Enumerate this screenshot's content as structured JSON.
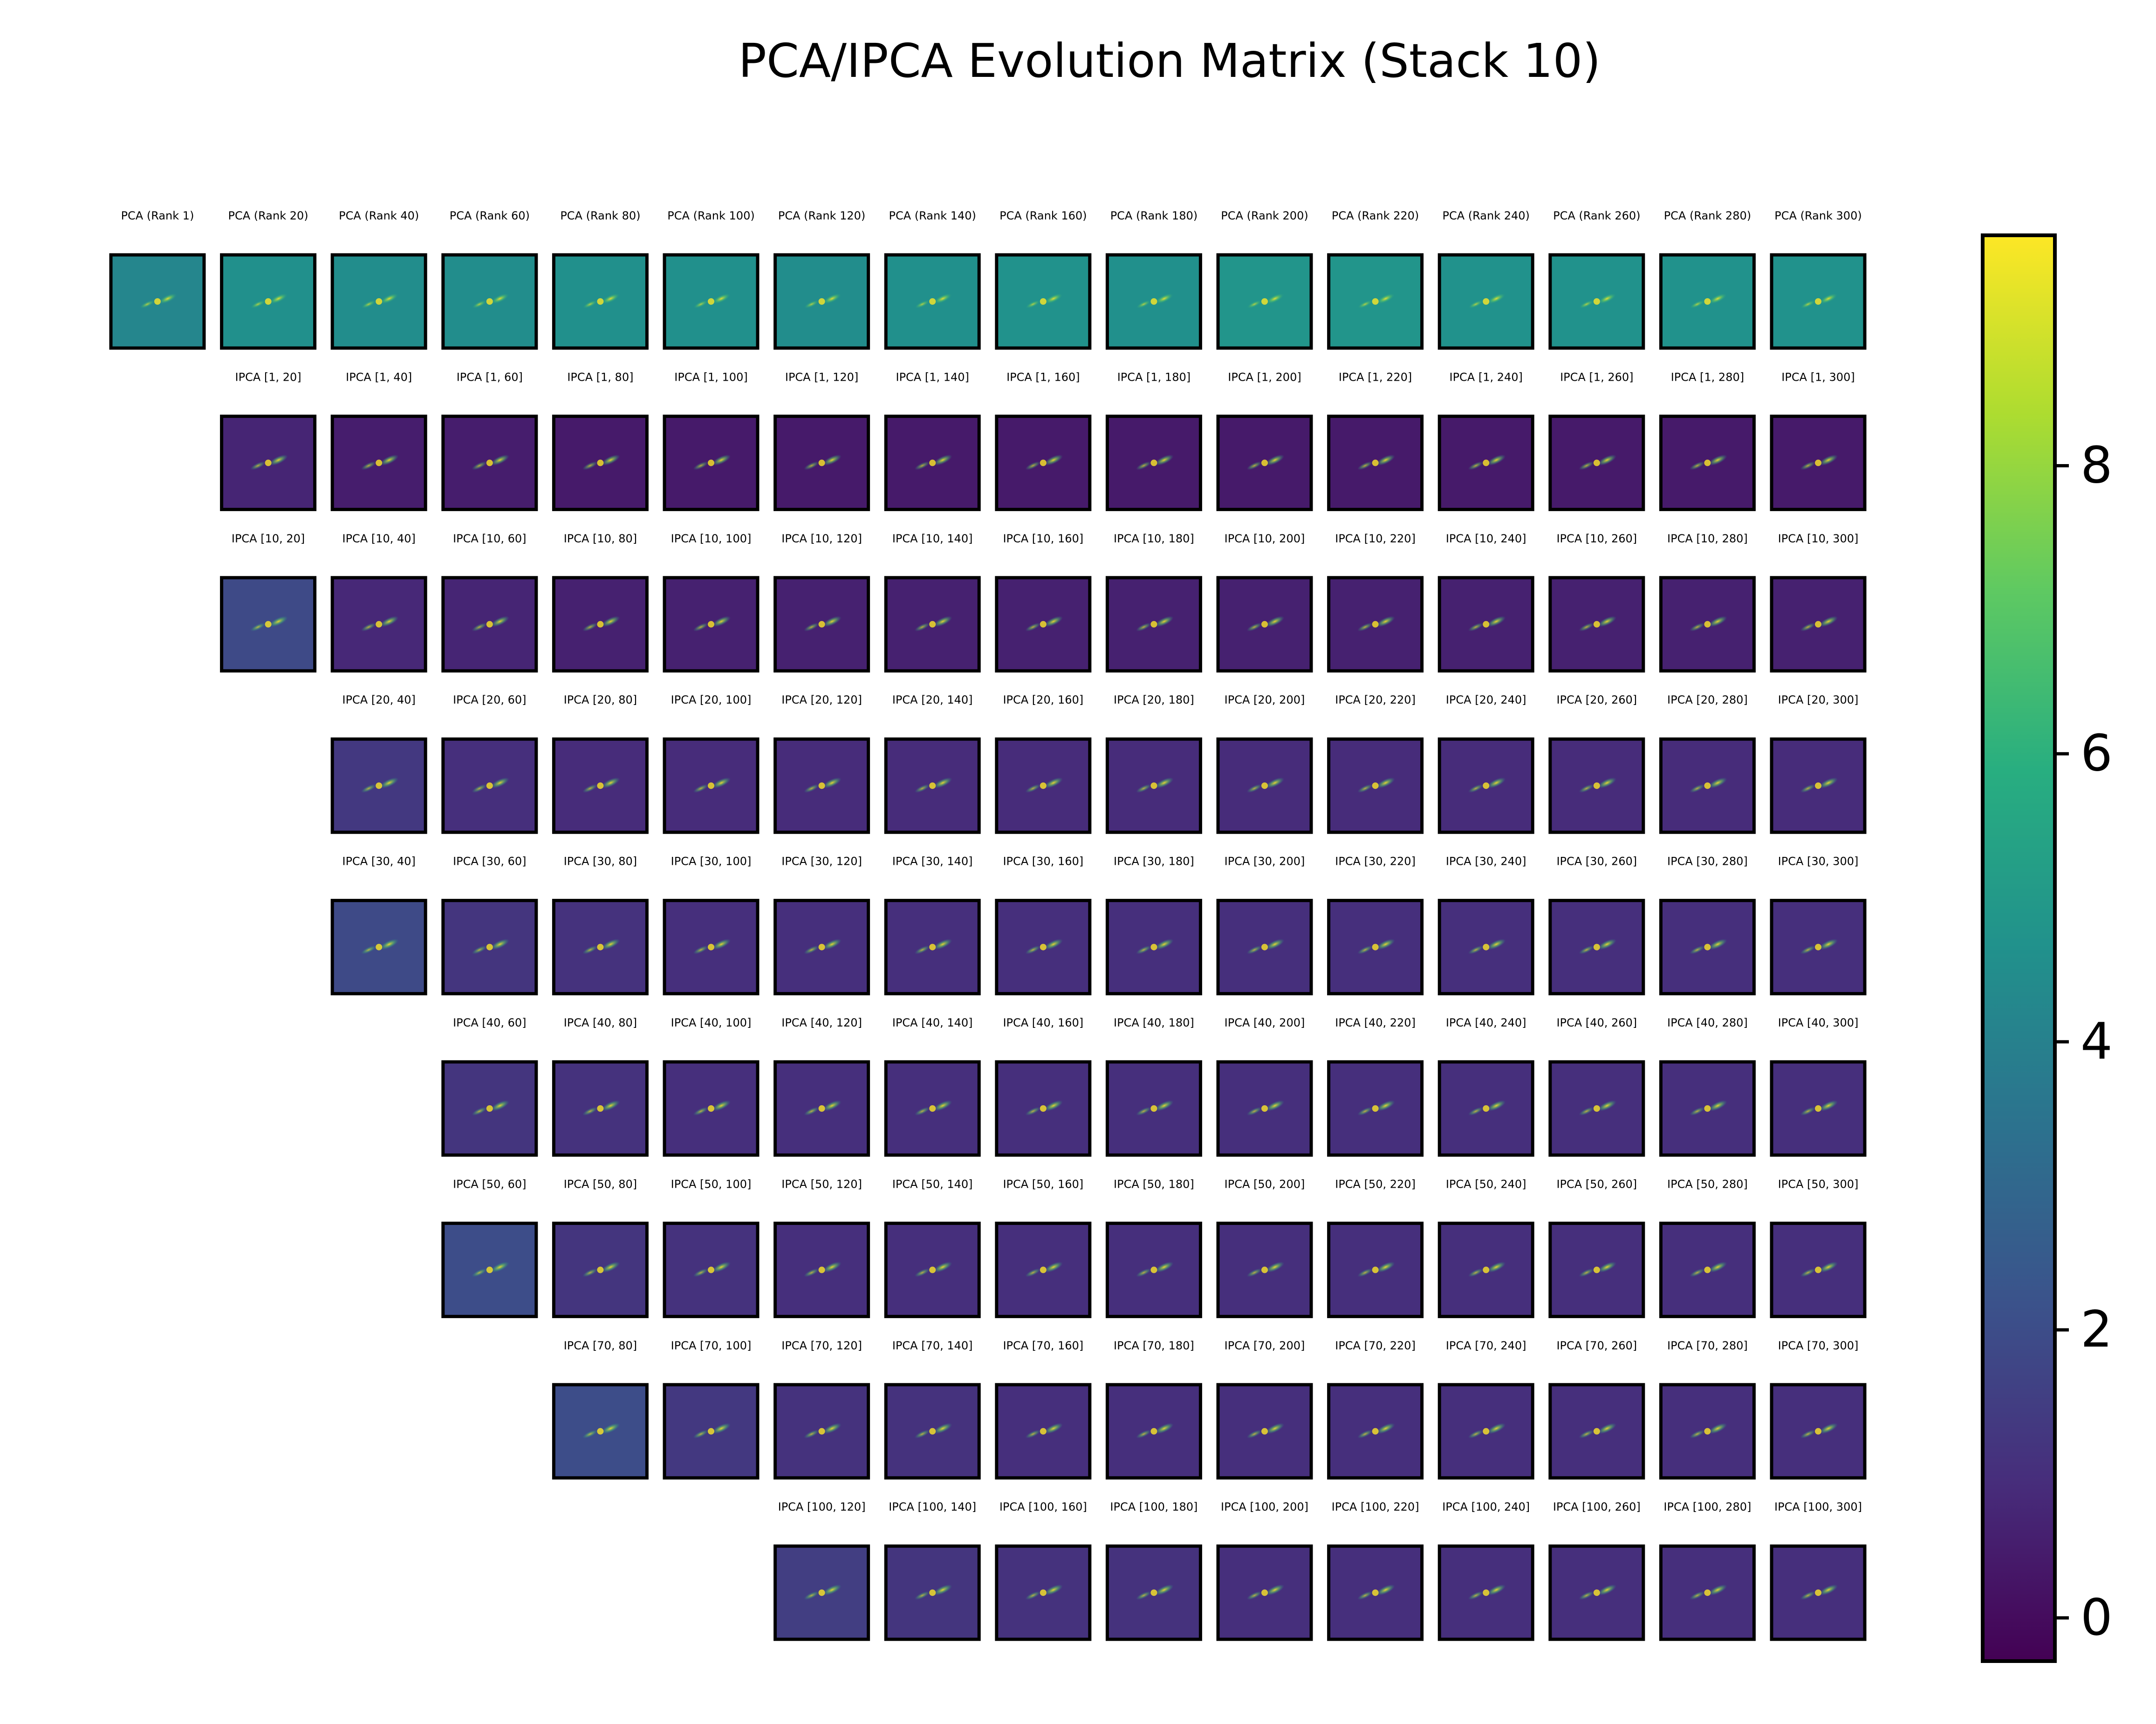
{
  "chart_data": {
    "type": "heatmap",
    "title": "PCA/IPCA Evolution Matrix (Stack 10)",
    "colormap": "viridis",
    "colorbar": {
      "ticks": [
        0,
        2,
        4,
        6,
        8
      ],
      "tick_labels": [
        "0",
        "2",
        "4",
        "6",
        "8"
      ],
      "range": [
        -0.3,
        9.6
      ]
    },
    "columns": [
      20,
      40,
      60,
      80,
      100,
      120,
      140,
      160,
      180,
      200,
      220,
      240,
      260,
      280,
      300
    ],
    "rows": [
      {
        "label": "PCA",
        "panels": [
          {
            "label": "PCA (Rank 1)",
            "level": 4.2
          },
          {
            "label": "PCA (Rank 20)",
            "level": 4.6
          },
          {
            "label": "PCA (Rank 40)",
            "level": 4.5
          },
          {
            "label": "PCA (Rank 60)",
            "level": 4.5
          },
          {
            "label": "PCA (Rank 80)",
            "level": 4.6
          },
          {
            "label": "PCA (Rank 100)",
            "level": 4.6
          },
          {
            "label": "PCA (Rank 120)",
            "level": 4.5
          },
          {
            "label": "PCA (Rank 140)",
            "level": 4.6
          },
          {
            "label": "PCA (Rank 160)",
            "level": 4.7
          },
          {
            "label": "PCA (Rank 180)",
            "level": 4.6
          },
          {
            "label": "PCA (Rank 200)",
            "level": 4.8
          },
          {
            "label": "PCA (Rank 220)",
            "level": 4.8
          },
          {
            "label": "PCA (Rank 240)",
            "level": 4.7
          },
          {
            "label": "PCA (Rank 260)",
            "level": 4.7
          },
          {
            "label": "PCA (Rank 280)",
            "level": 4.7
          },
          {
            "label": "PCA (Rank 300)",
            "level": 4.7
          }
        ]
      },
      {
        "label": "IPCA [1, *]",
        "panels": [
          {
            "label": "IPCA [1, 20]",
            "level": 0.7
          },
          {
            "label": "IPCA [1, 40]",
            "level": 0.5
          },
          {
            "label": "IPCA [1, 60]",
            "level": 0.5
          },
          {
            "label": "IPCA [1, 80]",
            "level": 0.4
          },
          {
            "label": "IPCA [1, 100]",
            "level": 0.4
          },
          {
            "label": "IPCA [1, 120]",
            "level": 0.4
          },
          {
            "label": "IPCA [1, 140]",
            "level": 0.4
          },
          {
            "label": "IPCA [1, 160]",
            "level": 0.4
          },
          {
            "label": "IPCA [1, 180]",
            "level": 0.4
          },
          {
            "label": "IPCA [1, 200]",
            "level": 0.4
          },
          {
            "label": "IPCA [1, 220]",
            "level": 0.4
          },
          {
            "label": "IPCA [1, 240]",
            "level": 0.4
          },
          {
            "label": "IPCA [1, 260]",
            "level": 0.4
          },
          {
            "label": "IPCA [1, 280]",
            "level": 0.4
          },
          {
            "label": "IPCA [1, 300]",
            "level": 0.4
          }
        ]
      },
      {
        "label": "IPCA [10, *]",
        "panels": [
          {
            "label": "IPCA [10, 20]",
            "level": 1.9
          },
          {
            "label": "IPCA [10, 40]",
            "level": 0.8
          },
          {
            "label": "IPCA [10, 60]",
            "level": 0.7
          },
          {
            "label": "IPCA [10, 80]",
            "level": 0.6
          },
          {
            "label": "IPCA [10, 100]",
            "level": 0.6
          },
          {
            "label": "IPCA [10, 120]",
            "level": 0.6
          },
          {
            "label": "IPCA [10, 140]",
            "level": 0.6
          },
          {
            "label": "IPCA [10, 160]",
            "level": 0.6
          },
          {
            "label": "IPCA [10, 180]",
            "level": 0.6
          },
          {
            "label": "IPCA [10, 200]",
            "level": 0.6
          },
          {
            "label": "IPCA [10, 220]",
            "level": 0.6
          },
          {
            "label": "IPCA [10, 240]",
            "level": 0.6
          },
          {
            "label": "IPCA [10, 260]",
            "level": 0.6
          },
          {
            "label": "IPCA [10, 280]",
            "level": 0.6
          },
          {
            "label": "IPCA [10, 300]",
            "level": 0.6
          }
        ]
      },
      {
        "label": "IPCA [20, *]",
        "panels": [
          {
            "label": "IPCA [20, 40]",
            "level": 1.3
          },
          {
            "label": "IPCA [20, 60]",
            "level": 1.0
          },
          {
            "label": "IPCA [20, 80]",
            "level": 0.9
          },
          {
            "label": "IPCA [20, 100]",
            "level": 0.9
          },
          {
            "label": "IPCA [20, 120]",
            "level": 0.9
          },
          {
            "label": "IPCA [20, 140]",
            "level": 0.9
          },
          {
            "label": "IPCA [20, 160]",
            "level": 0.9
          },
          {
            "label": "IPCA [20, 180]",
            "level": 0.9
          },
          {
            "label": "IPCA [20, 200]",
            "level": 0.9
          },
          {
            "label": "IPCA [20, 220]",
            "level": 0.9
          },
          {
            "label": "IPCA [20, 240]",
            "level": 0.9
          },
          {
            "label": "IPCA [20, 260]",
            "level": 0.9
          },
          {
            "label": "IPCA [20, 280]",
            "level": 0.9
          },
          {
            "label": "IPCA [20, 300]",
            "level": 0.9
          }
        ]
      },
      {
        "label": "IPCA [30, *]",
        "panels": [
          {
            "label": "IPCA [30, 40]",
            "level": 1.9
          },
          {
            "label": "IPCA [30, 60]",
            "level": 1.2
          },
          {
            "label": "IPCA [30, 80]",
            "level": 1.1
          },
          {
            "label": "IPCA [30, 100]",
            "level": 1.0
          },
          {
            "label": "IPCA [30, 120]",
            "level": 1.0
          },
          {
            "label": "IPCA [30, 140]",
            "level": 1.0
          },
          {
            "label": "IPCA [30, 160]",
            "level": 1.0
          },
          {
            "label": "IPCA [30, 180]",
            "level": 1.0
          },
          {
            "label": "IPCA [30, 200]",
            "level": 1.0
          },
          {
            "label": "IPCA [30, 220]",
            "level": 1.0
          },
          {
            "label": "IPCA [30, 240]",
            "level": 1.0
          },
          {
            "label": "IPCA [30, 260]",
            "level": 1.0
          },
          {
            "label": "IPCA [30, 280]",
            "level": 1.0
          },
          {
            "label": "IPCA [30, 300]",
            "level": 1.0
          }
        ]
      },
      {
        "label": "IPCA [40, *]",
        "panels": [
          {
            "label": "IPCA [40, 60]",
            "level": 1.2
          },
          {
            "label": "IPCA [40, 80]",
            "level": 1.1
          },
          {
            "label": "IPCA [40, 100]",
            "level": 1.0
          },
          {
            "label": "IPCA [40, 120]",
            "level": 1.0
          },
          {
            "label": "IPCA [40, 140]",
            "level": 1.0
          },
          {
            "label": "IPCA [40, 160]",
            "level": 1.0
          },
          {
            "label": "IPCA [40, 180]",
            "level": 1.0
          },
          {
            "label": "IPCA [40, 200]",
            "level": 1.0
          },
          {
            "label": "IPCA [40, 220]",
            "level": 1.0
          },
          {
            "label": "IPCA [40, 240]",
            "level": 1.0
          },
          {
            "label": "IPCA [40, 260]",
            "level": 1.0
          },
          {
            "label": "IPCA [40, 280]",
            "level": 1.0
          },
          {
            "label": "IPCA [40, 300]",
            "level": 1.0
          }
        ]
      },
      {
        "label": "IPCA [50, *]",
        "panels": [
          {
            "label": "IPCA [50, 60]",
            "level": 2.0
          },
          {
            "label": "IPCA [50, 80]",
            "level": 1.2
          },
          {
            "label": "IPCA [50, 100]",
            "level": 1.1
          },
          {
            "label": "IPCA [50, 120]",
            "level": 1.0
          },
          {
            "label": "IPCA [50, 140]",
            "level": 1.0
          },
          {
            "label": "IPCA [50, 160]",
            "level": 1.0
          },
          {
            "label": "IPCA [50, 180]",
            "level": 1.0
          },
          {
            "label": "IPCA [50, 200]",
            "level": 1.0
          },
          {
            "label": "IPCA [50, 220]",
            "level": 1.0
          },
          {
            "label": "IPCA [50, 240]",
            "level": 1.0
          },
          {
            "label": "IPCA [50, 260]",
            "level": 1.0
          },
          {
            "label": "IPCA [50, 280]",
            "level": 1.0
          },
          {
            "label": "IPCA [50, 300]",
            "level": 1.0
          }
        ]
      },
      {
        "label": "IPCA [70, *]",
        "panels": [
          {
            "label": "IPCA [70, 80]",
            "level": 2.0
          },
          {
            "label": "IPCA [70, 100]",
            "level": 1.3
          },
          {
            "label": "IPCA [70, 120]",
            "level": 1.1
          },
          {
            "label": "IPCA [70, 140]",
            "level": 1.1
          },
          {
            "label": "IPCA [70, 160]",
            "level": 1.0
          },
          {
            "label": "IPCA [70, 180]",
            "level": 1.0
          },
          {
            "label": "IPCA [70, 200]",
            "level": 1.0
          },
          {
            "label": "IPCA [70, 220]",
            "level": 1.0
          },
          {
            "label": "IPCA [70, 240]",
            "level": 1.0
          },
          {
            "label": "IPCA [70, 260]",
            "level": 1.0
          },
          {
            "label": "IPCA [70, 280]",
            "level": 1.0
          },
          {
            "label": "IPCA [70, 300]",
            "level": 1.0
          }
        ]
      },
      {
        "label": "IPCA [100, *]",
        "panels": [
          {
            "label": "IPCA [100, 120]",
            "level": 1.5
          },
          {
            "label": "IPCA [100, 140]",
            "level": 1.2
          },
          {
            "label": "IPCA [100, 160]",
            "level": 1.1
          },
          {
            "label": "IPCA [100, 180]",
            "level": 1.1
          },
          {
            "label": "IPCA [100, 200]",
            "level": 1.0
          },
          {
            "label": "IPCA [100, 220]",
            "level": 1.0
          },
          {
            "label": "IPCA [100, 240]",
            "level": 1.0
          },
          {
            "label": "IPCA [100, 260]",
            "level": 1.0
          },
          {
            "label": "IPCA [100, 280]",
            "level": 1.0
          },
          {
            "label": "IPCA [100, 300]",
            "level": 1.0
          }
        ]
      }
    ]
  }
}
